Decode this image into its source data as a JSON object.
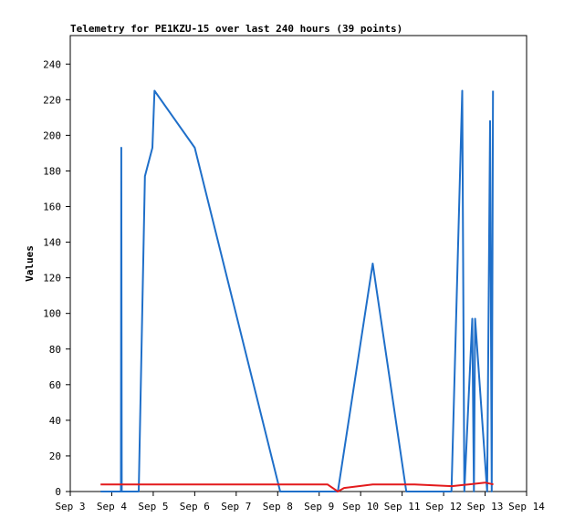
{
  "chart_data": {
    "type": "line",
    "title": "Telemetry for PE1KZU-15 over last 240 hours (39 points)",
    "xlabel": "",
    "ylabel": "Values",
    "xlim": [
      "Sep 3",
      "Sep 14"
    ],
    "ylim": [
      0,
      256
    ],
    "grid": false,
    "legend": "none",
    "x_ticks": [
      "Sep 3",
      "Sep 4",
      "Sep 5",
      "Sep 6",
      "Sep 7",
      "Sep 8",
      "Sep 9",
      "Sep 10",
      "Sep 11",
      "Sep 12",
      "Sep 13",
      "Sep 14"
    ],
    "y_ticks": [
      0,
      20,
      40,
      60,
      80,
      100,
      120,
      140,
      160,
      180,
      200,
      220,
      240
    ],
    "series": [
      {
        "color": "#1f6fc9",
        "points": [
          [
            0.73,
            0
          ],
          [
            1.22,
            0
          ],
          [
            1.23,
            193
          ],
          [
            1.24,
            0
          ],
          [
            1.65,
            0
          ],
          [
            1.8,
            177
          ],
          [
            1.98,
            193
          ],
          [
            2.03,
            225
          ],
          [
            3.0,
            193
          ],
          [
            5.06,
            0
          ],
          [
            6.45,
            0
          ],
          [
            7.29,
            128
          ],
          [
            8.1,
            0
          ],
          [
            9.19,
            0
          ],
          [
            9.45,
            225
          ],
          [
            9.5,
            0
          ],
          [
            9.69,
            97
          ],
          [
            9.73,
            0
          ],
          [
            9.76,
            97
          ],
          [
            10.05,
            0
          ],
          [
            10.12,
            208
          ],
          [
            10.16,
            0
          ],
          [
            10.19,
            225
          ]
        ]
      },
      {
        "color": "#e31a1c",
        "points": [
          [
            0.73,
            4
          ],
          [
            6.2,
            4
          ],
          [
            6.45,
            0
          ],
          [
            6.6,
            2
          ],
          [
            7.29,
            4
          ],
          [
            8.3,
            4
          ],
          [
            9.2,
            3
          ],
          [
            9.6,
            4
          ],
          [
            10.0,
            5
          ],
          [
            10.2,
            4
          ]
        ]
      }
    ]
  }
}
